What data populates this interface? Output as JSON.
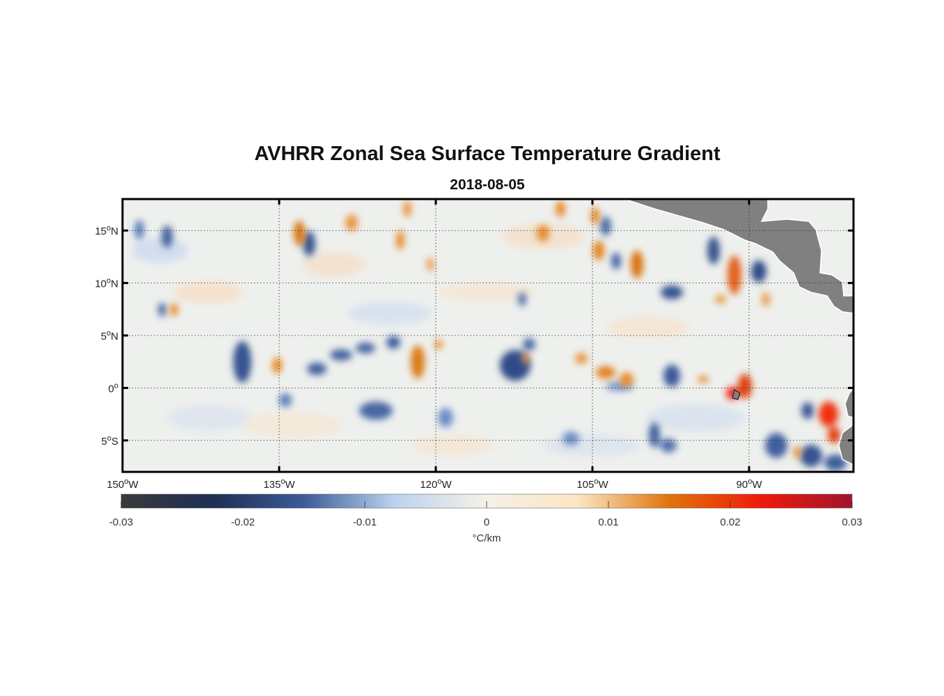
{
  "title": "AVHRR Zonal Sea Surface Temperature Gradient",
  "subtitle": "2018-08-05",
  "chart_data": {
    "type": "heatmap",
    "region": {
      "lon_range": [
        -150,
        -80
      ],
      "lat_range": [
        -8,
        18
      ]
    },
    "lon_ticks": [
      {
        "value": -150,
        "deg": "150",
        "suffix": "W"
      },
      {
        "value": -135,
        "deg": "135",
        "suffix": "W"
      },
      {
        "value": -120,
        "deg": "120",
        "suffix": "W"
      },
      {
        "value": -105,
        "deg": "105",
        "suffix": "W"
      },
      {
        "value": -90,
        "deg": "90",
        "suffix": "W"
      }
    ],
    "lat_ticks": [
      {
        "value": 15,
        "deg": "15",
        "suffix": "N"
      },
      {
        "value": 10,
        "deg": "10",
        "suffix": "N"
      },
      {
        "value": 5,
        "deg": "5",
        "suffix": "N"
      },
      {
        "value": 0,
        "deg": "0",
        "suffix": ""
      },
      {
        "value": -5,
        "deg": "5",
        "suffix": "S"
      }
    ],
    "grid": true,
    "land_color": "#808080",
    "colorbar": {
      "min": -0.03,
      "max": 0.03,
      "ticks": [
        {
          "value": -0.03,
          "label": "-0.03"
        },
        {
          "value": -0.02,
          "label": "-0.02"
        },
        {
          "value": -0.01,
          "label": "-0.01"
        },
        {
          "value": 0,
          "label": "0"
        },
        {
          "value": 0.01,
          "label": "0.01"
        },
        {
          "value": 0.02,
          "label": "0.02"
        },
        {
          "value": 0.03,
          "label": "0.03"
        }
      ],
      "unit_label": "°C/km",
      "colors": [
        "#3a3a3a",
        "#1f2f55",
        "#3c5b97",
        "#bcd4ee",
        "#f5f0e8",
        "#fbe6c3",
        "#e0740a",
        "#f01a0a",
        "#a0142e"
      ]
    }
  }
}
